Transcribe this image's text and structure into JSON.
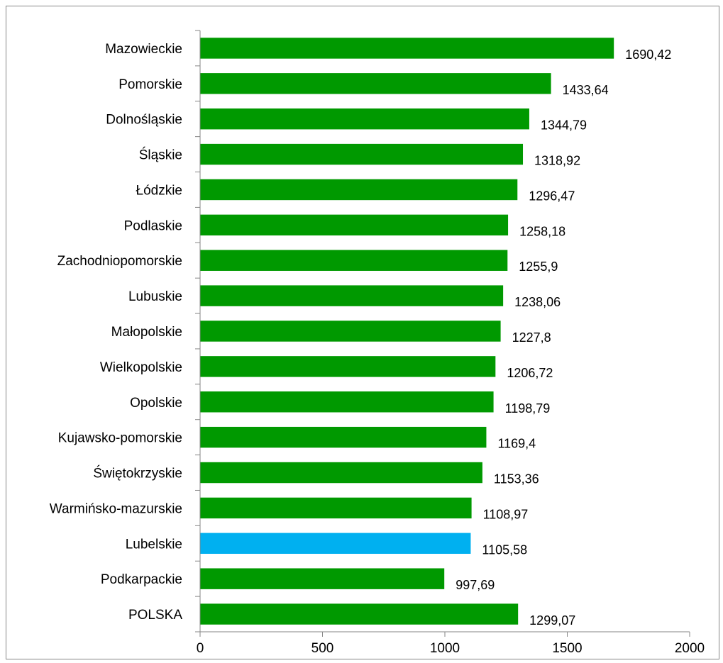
{
  "chart_data": {
    "type": "bar",
    "orientation": "horizontal",
    "title": "",
    "xlabel": "",
    "ylabel": "",
    "xlim": [
      0,
      2000
    ],
    "x_ticks": [
      "0",
      "500",
      "1000",
      "1500",
      "2000"
    ],
    "grid": false,
    "legend": "none",
    "categories": [
      "Mazowieckie",
      "Pomorskie",
      "Dolnośląskie",
      "Śląskie",
      "Łódzkie",
      "Podlaskie",
      "Zachodniopomorskie",
      "Lubuskie",
      "Małopolskie",
      "Wielkopolskie",
      "Opolskie",
      "Kujawsko-pomorskie",
      "Świętokrzyskie",
      "Warmińsko-mazurskie",
      "Lubelskie",
      "Podkarpackie",
      "POLSKA"
    ],
    "values": [
      1690.42,
      1433.64,
      1344.79,
      1318.92,
      1296.47,
      1258.18,
      1255.9,
      1238.06,
      1227.8,
      1206.72,
      1198.79,
      1169.4,
      1153.36,
      1108.97,
      1105.58,
      997.69,
      1299.07
    ],
    "value_labels": [
      "1690,42",
      "1433,64",
      "1344,79",
      "1318,92",
      "1296,47",
      "1258,18",
      "1255,9",
      "1238,06",
      "1227,8",
      "1206,72",
      "1198,79",
      "1169,4",
      "1153,36",
      "1108,97",
      "1105,58",
      "997,69",
      "1299,07"
    ],
    "colors": {
      "default": "#009900",
      "highlight": "#00b0f0",
      "axis": "#868686"
    },
    "highlight_category": "Lubelskie"
  }
}
